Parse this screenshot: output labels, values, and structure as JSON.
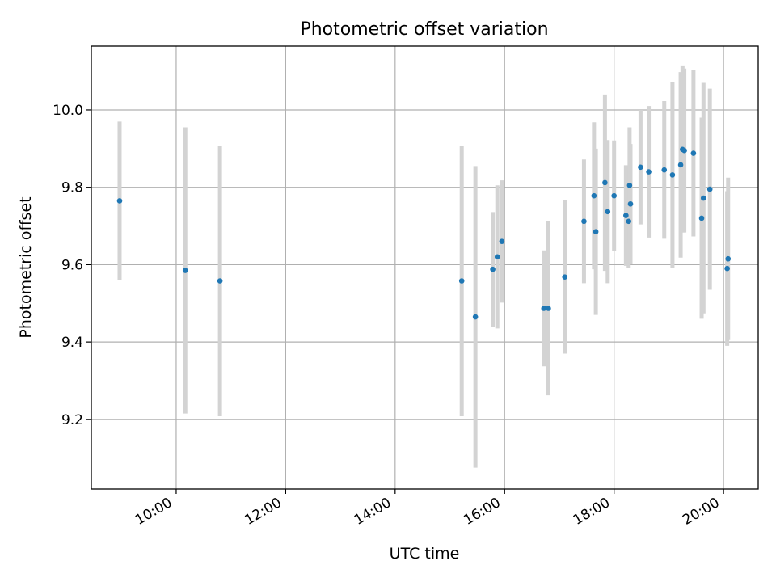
{
  "chart_data": {
    "type": "scatter",
    "title": "Photometric offset variation",
    "xlabel": "UTC time",
    "ylabel": "Photometric offset",
    "x_axis": {
      "kind": "time",
      "range": [
        "08:27",
        "20:38"
      ],
      "ticks": [
        "10:00",
        "12:00",
        "14:00",
        "16:00",
        "18:00",
        "20:00"
      ]
    },
    "y_axis": {
      "range": [
        9.02,
        10.165
      ],
      "ticks": [
        9.2,
        9.4,
        9.6,
        9.8,
        10.0
      ],
      "tick_labels": [
        "9.2",
        "9.4",
        "9.6",
        "9.8",
        "10.0"
      ]
    },
    "grid": true,
    "colors": {
      "points": "#1f77b4",
      "error_bars": "#d3d3d3"
    },
    "points": [
      {
        "x": "08:58",
        "y": 9.765,
        "err": 0.205
      },
      {
        "x": "10:10",
        "y": 9.585,
        "err": 0.37
      },
      {
        "x": "10:48",
        "y": 9.558,
        "err": 0.35
      },
      {
        "x": "15:13",
        "y": 9.558,
        "err": 0.35
      },
      {
        "x": "15:28",
        "y": 9.465,
        "err": 0.39
      },
      {
        "x": "15:47",
        "y": 9.588,
        "err": 0.148
      },
      {
        "x": "15:52",
        "y": 9.62,
        "err": 0.185
      },
      {
        "x": "15:57",
        "y": 9.66,
        "err": 0.158
      },
      {
        "x": "16:43",
        "y": 9.487,
        "err": 0.15
      },
      {
        "x": "16:48",
        "y": 9.487,
        "err": 0.225
      },
      {
        "x": "17:06",
        "y": 9.568,
        "err": 0.198
      },
      {
        "x": "17:27",
        "y": 9.712,
        "err": 0.16
      },
      {
        "x": "17:38",
        "y": 9.778,
        "err": 0.19
      },
      {
        "x": "17:40",
        "y": 9.685,
        "err": 0.215
      },
      {
        "x": "17:50",
        "y": 9.812,
        "err": 0.228
      },
      {
        "x": "17:53",
        "y": 9.737,
        "err": 0.185
      },
      {
        "x": "18:00",
        "y": 9.778,
        "err": 0.143
      },
      {
        "x": "18:13",
        "y": 9.727,
        "err": 0.13
      },
      {
        "x": "18:16",
        "y": 9.712,
        "err": 0.12
      },
      {
        "x": "18:17",
        "y": 9.805,
        "err": 0.15
      },
      {
        "x": "18:18",
        "y": 9.757,
        "err": 0.155
      },
      {
        "x": "18:29",
        "y": 9.852,
        "err": 0.148
      },
      {
        "x": "18:38",
        "y": 9.84,
        "err": 0.17
      },
      {
        "x": "18:55",
        "y": 9.845,
        "err": 0.178
      },
      {
        "x": "19:04",
        "y": 9.832,
        "err": 0.24
      },
      {
        "x": "19:13",
        "y": 9.858,
        "err": 0.24
      },
      {
        "x": "19:15",
        "y": 9.898,
        "err": 0.215
      },
      {
        "x": "19:17",
        "y": 9.895,
        "err": 0.212
      },
      {
        "x": "19:27",
        "y": 9.888,
        "err": 0.215
      },
      {
        "x": "19:36",
        "y": 9.72,
        "err": 0.26
      },
      {
        "x": "19:38",
        "y": 9.772,
        "err": 0.298
      },
      {
        "x": "19:45",
        "y": 9.795,
        "err": 0.26
      },
      {
        "x": "20:04",
        "y": 9.59,
        "err": 0.2
      },
      {
        "x": "20:05",
        "y": 9.615,
        "err": 0.21
      }
    ]
  }
}
